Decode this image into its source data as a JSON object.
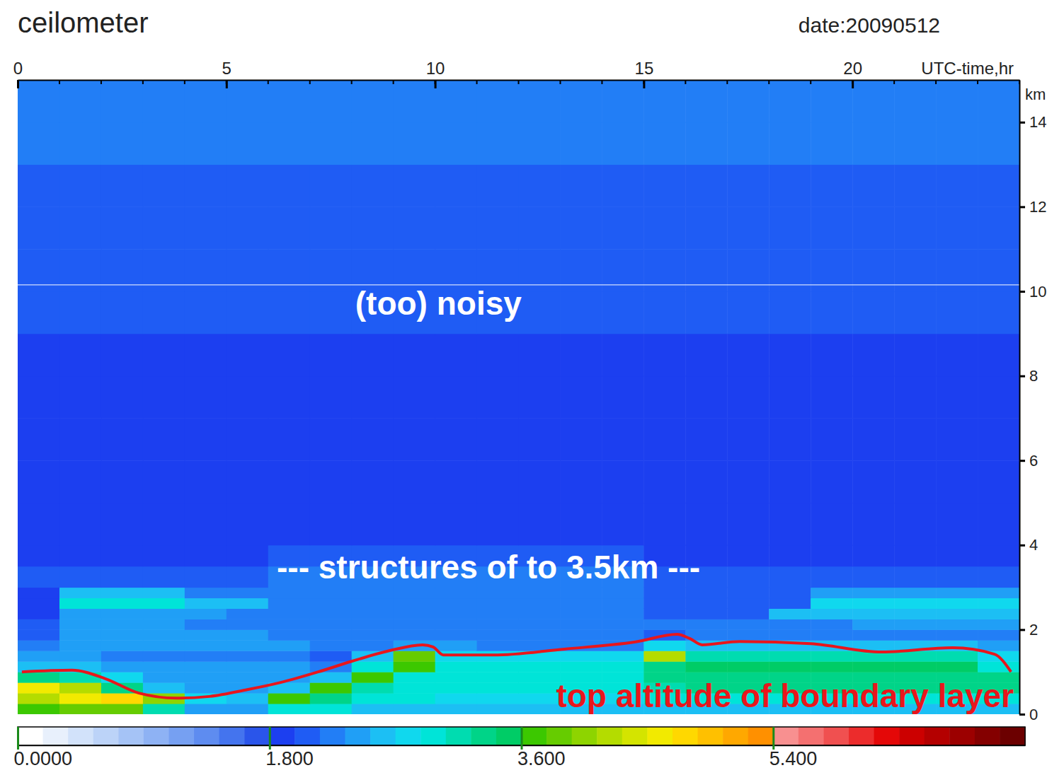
{
  "chart_data": {
    "type": "heatmap",
    "title": "ceilometer",
    "subtitle": "date:20090512",
    "x_label": "UTC-time,hr",
    "y_label": "km",
    "xlim": [
      0,
      24
    ],
    "xticks": [
      0,
      5,
      10,
      15,
      20
    ],
    "ylim": [
      0,
      15
    ],
    "yticks": [
      0,
      2,
      4,
      6,
      8,
      10,
      12,
      14
    ],
    "x_edges": [
      0,
      1,
      2,
      3,
      4,
      5,
      6,
      7,
      8,
      9,
      10,
      11,
      12,
      13,
      14,
      15,
      16,
      17,
      18,
      19,
      20,
      21,
      22,
      23,
      24
    ],
    "y_edges": [
      0,
      0.25,
      0.5,
      0.75,
      1,
      1.25,
      1.5,
      1.75,
      2,
      2.25,
      2.5,
      2.75,
      3,
      3.5,
      4,
      5,
      6,
      7,
      8,
      9,
      10,
      11,
      12,
      13,
      14,
      15
    ],
    "cells": [
      [
        3.6,
        3.8,
        3.8,
        3.2,
        2.4,
        2.4,
        3.0,
        3.0,
        2.6,
        2.6,
        2.6,
        2.6,
        2.6,
        2.6,
        2.6,
        2.6,
        2.6,
        2.6,
        2.6,
        2.6,
        2.6,
        2.6,
        2.6,
        2.6
      ],
      [
        4.2,
        4.6,
        4.8,
        4.0,
        2.8,
        2.6,
        3.6,
        3.4,
        3.0,
        3.0,
        2.8,
        2.8,
        2.8,
        2.8,
        2.8,
        3.0,
        3.0,
        3.0,
        3.0,
        3.0,
        3.0,
        3.0,
        3.0,
        3.0
      ],
      [
        4.5,
        4.2,
        3.4,
        2.6,
        2.4,
        2.4,
        2.6,
        3.6,
        3.2,
        3.0,
        2.9,
        2.9,
        2.9,
        2.9,
        2.9,
        3.2,
        3.3,
        3.3,
        3.3,
        3.3,
        3.3,
        3.3,
        3.3,
        3.3
      ],
      [
        3.4,
        3.2,
        2.8,
        2.5,
        2.4,
        2.4,
        2.4,
        2.6,
        3.6,
        3.0,
        2.9,
        2.9,
        2.9,
        2.9,
        2.9,
        3.3,
        3.4,
        3.4,
        3.4,
        3.4,
        3.4,
        3.4,
        3.4,
        3.4
      ],
      [
        2.6,
        2.6,
        2.4,
        2.4,
        2.4,
        2.4,
        2.4,
        2.3,
        3.0,
        3.6,
        3.0,
        2.9,
        2.9,
        2.9,
        2.9,
        3.4,
        3.5,
        3.5,
        3.5,
        3.5,
        3.5,
        3.5,
        3.5,
        3.0
      ],
      [
        2.4,
        2.4,
        2.3,
        2.3,
        2.3,
        2.3,
        2.3,
        2.1,
        2.6,
        3.8,
        2.8,
        2.7,
        2.7,
        2.7,
        2.7,
        4.2,
        3.2,
        3.2,
        3.2,
        3.2,
        3.2,
        3.2,
        3.2,
        2.8
      ],
      [
        2.3,
        2.4,
        2.4,
        2.4,
        2.4,
        2.4,
        2.4,
        2.2,
        2.2,
        2.5,
        2.4,
        2.3,
        2.3,
        2.3,
        2.3,
        2.8,
        2.6,
        2.6,
        2.6,
        2.6,
        2.6,
        2.6,
        2.6,
        2.5
      ],
      [
        2.1,
        2.5,
        2.5,
        2.5,
        2.5,
        2.5,
        2.2,
        2.2,
        2.2,
        2.2,
        2.2,
        2.2,
        2.2,
        2.2,
        2.2,
        2.1,
        2.2,
        2.2,
        2.2,
        2.2,
        2.2,
        2.2,
        2.2,
        2.2
      ],
      [
        2.0,
        2.4,
        2.4,
        2.4,
        2.2,
        2.2,
        2.2,
        2.2,
        2.2,
        2.2,
        2.2,
        2.2,
        2.2,
        2.2,
        2.2,
        2.2,
        2.2,
        2.2,
        2.2,
        2.2,
        2.4,
        2.4,
        2.4,
        2.4
      ],
      [
        1.9,
        2.5,
        2.5,
        2.5,
        2.5,
        2.2,
        2.2,
        2.2,
        2.2,
        2.2,
        2.2,
        2.2,
        2.2,
        2.2,
        2.2,
        2.1,
        2.1,
        2.1,
        2.6,
        2.6,
        2.6,
        2.6,
        2.6,
        2.6
      ],
      [
        1.8,
        2.9,
        2.9,
        2.9,
        2.6,
        2.6,
        2.2,
        2.2,
        2.2,
        2.2,
        2.2,
        2.2,
        2.2,
        2.2,
        2.2,
        2.1,
        2.1,
        2.1,
        2.1,
        2.7,
        2.7,
        2.7,
        2.7,
        2.7
      ],
      [
        1.8,
        2.6,
        2.6,
        2.6,
        2.2,
        2.2,
        2.2,
        2.2,
        2.2,
        2.2,
        2.2,
        2.2,
        2.2,
        2.2,
        2.2,
        2.0,
        2.0,
        2.0,
        2.0,
        2.5,
        2.5,
        2.5,
        2.5,
        2.5
      ],
      [
        2.0,
        2.0,
        2.0,
        2.0,
        2.0,
        2.0,
        2.2,
        2.2,
        2.2,
        2.2,
        2.2,
        2.2,
        2.2,
        2.2,
        2.2,
        2.1,
        2.1,
        2.1,
        2.1,
        2.1,
        2.1,
        2.1,
        2.1,
        2.1
      ],
      [
        1.9,
        1.9,
        1.9,
        1.9,
        1.9,
        1.9,
        2.0,
        2.0,
        2.0,
        2.0,
        2.0,
        2.0,
        2.0,
        2.0,
        2.0,
        1.9,
        1.9,
        1.9,
        1.9,
        1.9,
        1.9,
        1.9,
        1.9,
        1.9
      ],
      [
        1.85,
        1.85,
        1.85,
        1.85,
        1.85,
        1.85,
        1.85,
        1.85,
        1.85,
        1.85,
        1.85,
        1.85,
        1.85,
        1.85,
        1.85,
        1.85,
        1.85,
        1.85,
        1.85,
        1.85,
        1.85,
        1.85,
        1.85,
        1.85
      ],
      [
        1.85,
        1.85,
        1.85,
        1.85,
        1.85,
        1.85,
        1.85,
        1.85,
        1.85,
        1.85,
        1.85,
        1.85,
        1.85,
        1.85,
        1.85,
        1.85,
        1.85,
        1.85,
        1.85,
        1.85,
        1.85,
        1.85,
        1.85,
        1.85
      ],
      [
        1.85,
        1.85,
        1.85,
        1.85,
        1.85,
        1.85,
        1.85,
        1.85,
        1.85,
        1.85,
        1.85,
        1.85,
        1.85,
        1.85,
        1.85,
        1.85,
        1.85,
        1.85,
        1.85,
        1.85,
        1.85,
        1.85,
        1.85,
        1.85
      ],
      [
        1.9,
        1.9,
        1.9,
        1.9,
        1.9,
        1.9,
        1.9,
        1.9,
        1.9,
        1.9,
        1.9,
        1.9,
        1.9,
        1.9,
        1.9,
        1.9,
        1.9,
        1.9,
        1.9,
        1.9,
        1.9,
        1.9,
        1.9,
        1.9
      ],
      [
        1.95,
        1.95,
        1.95,
        1.95,
        1.95,
        1.95,
        1.95,
        1.95,
        1.95,
        1.95,
        1.95,
        1.95,
        1.95,
        1.95,
        1.95,
        1.95,
        1.95,
        1.95,
        1.95,
        1.95,
        1.95,
        1.95,
        1.95,
        1.95
      ],
      [
        2.0,
        2.0,
        2.0,
        2.0,
        2.0,
        2.0,
        2.0,
        2.0,
        2.0,
        2.0,
        2.0,
        2.0,
        2.0,
        2.0,
        2.0,
        2.0,
        2.0,
        2.0,
        2.0,
        2.0,
        2.0,
        2.0,
        2.0,
        2.0
      ],
      [
        2.05,
        2.05,
        2.05,
        2.05,
        2.05,
        2.05,
        2.05,
        2.05,
        2.05,
        2.05,
        2.05,
        2.05,
        2.05,
        2.05,
        2.05,
        2.05,
        2.05,
        2.05,
        2.05,
        2.05,
        2.05,
        2.05,
        2.05,
        2.05
      ],
      [
        2.1,
        2.1,
        2.1,
        2.1,
        2.1,
        2.1,
        2.1,
        2.1,
        2.1,
        2.1,
        2.1,
        2.1,
        2.1,
        2.1,
        2.1,
        2.1,
        2.1,
        2.1,
        2.1,
        2.1,
        2.1,
        2.1,
        2.1,
        2.1
      ],
      [
        2.15,
        2.15,
        2.15,
        2.15,
        2.15,
        2.15,
        2.15,
        2.15,
        2.15,
        2.15,
        2.15,
        2.15,
        2.15,
        2.15,
        2.15,
        2.15,
        2.15,
        2.15,
        2.15,
        2.15,
        2.15,
        2.15,
        2.15,
        2.15
      ],
      [
        2.2,
        2.2,
        2.2,
        2.2,
        2.2,
        2.2,
        2.2,
        2.2,
        2.2,
        2.2,
        2.2,
        2.2,
        2.2,
        2.2,
        2.2,
        2.2,
        2.2,
        2.2,
        2.2,
        2.2,
        2.2,
        2.2,
        2.2,
        2.2
      ],
      [
        2.2,
        2.2,
        2.2,
        2.2,
        2.2,
        2.2,
        2.2,
        2.2,
        2.2,
        2.2,
        2.2,
        2.2,
        2.2,
        2.2,
        2.2,
        2.2,
        2.2,
        2.2,
        2.2,
        2.2,
        2.2,
        2.2,
        2.2,
        2.2
      ]
    ],
    "colorbar_range": [
      0,
      7.2
    ],
    "colorbar_ticks": [
      {
        "value": 0,
        "label": "0.0000"
      },
      {
        "value": 1.8,
        "label": "1.800"
      },
      {
        "value": 3.6,
        "label": "3.600"
      },
      {
        "value": 5.4,
        "label": "5.400"
      }
    ],
    "series": [
      {
        "name": "top altitude of boundary layer",
        "type": "line",
        "color": "#e8161c",
        "x": [
          0.1,
          1.3,
          2.1,
          2.9,
          3.8,
          4.6,
          5.5,
          6.3,
          7.2,
          8.0,
          8.9,
          9.7,
          9.95,
          10.2,
          11.4,
          13.1,
          14.8,
          15.8,
          16.1,
          16.4,
          17.3,
          19.0,
          20.7,
          22.4,
          23.4,
          23.8
        ],
        "values": [
          1.0,
          1.04,
          0.84,
          0.5,
          0.38,
          0.42,
          0.58,
          0.75,
          1.0,
          1.25,
          1.5,
          1.64,
          1.59,
          1.4,
          1.4,
          1.54,
          1.71,
          1.89,
          1.79,
          1.64,
          1.72,
          1.67,
          1.47,
          1.57,
          1.42,
          1.0
        ]
      }
    ],
    "annotations": [
      {
        "text": "(too) noisy"
      },
      {
        "text": "--- structures of to 3.5km ---"
      }
    ]
  }
}
